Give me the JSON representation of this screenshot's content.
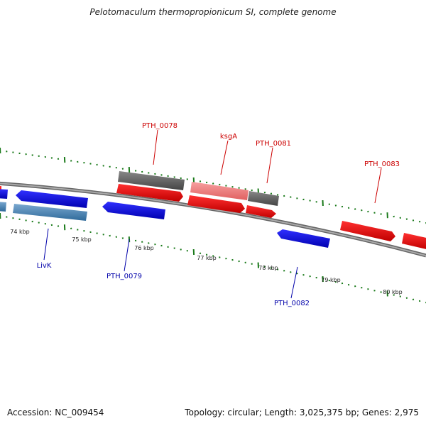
{
  "title": "Pelotomaculum thermopropionicum SI, complete genome",
  "footer": {
    "accession": "Accession: NC_009454",
    "summary": "Topology: circular; Length: 3,025,375 bp; Genes: 2,975"
  },
  "colors": {
    "forward_gene": "#ff0000",
    "reverse_gene": "#0000ff",
    "forward_label": "#cc0000",
    "reverse_label": "#0000aa",
    "grey_gene": "#666666",
    "pink_gene": "#f08080",
    "steel_gene": "#4682b4",
    "backbone": "#888888",
    "ticks": "#1a7a1a"
  },
  "scale_labels": [
    "74 kbp",
    "75 kbp",
    "76 kbp",
    "77 kbp",
    "78 kbp",
    "79 kbp",
    "80 kbp"
  ],
  "gene_labels": [
    {
      "text": "PTH_0078",
      "strand": "forward"
    },
    {
      "text": "ksgA",
      "strand": "forward"
    },
    {
      "text": "PTH_0081",
      "strand": "forward"
    },
    {
      "text": "PTH_0083",
      "strand": "forward"
    },
    {
      "text": "LivK",
      "strand": "reverse"
    },
    {
      "text": "PTH_0079",
      "strand": "reverse"
    },
    {
      "text": "PTH_0082",
      "strand": "reverse"
    }
  ]
}
